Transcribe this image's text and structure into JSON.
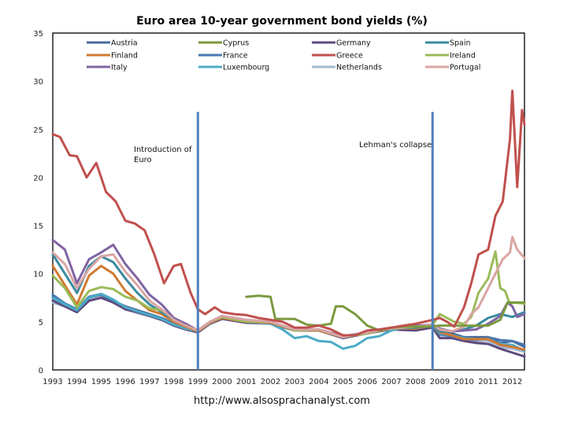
{
  "chart_data": {
    "type": "line",
    "title": "Euro area 10-year government bond yields (%)",
    "xlabel": "",
    "ylabel": "",
    "xlim": [
      1993,
      2012.5
    ],
    "ylim": [
      0,
      35
    ],
    "y_ticks": [
      "0",
      "5",
      "10",
      "15",
      "20",
      "25",
      "30",
      "35"
    ],
    "x_ticks": [
      "1993",
      "1994",
      "1995",
      "1996",
      "1997",
      "1998",
      "1999",
      "2000",
      "2001",
      "2002",
      "2003",
      "2004",
      "2005",
      "2006",
      "2007",
      "2008",
      "2009",
      "2010",
      "2011",
      "2012"
    ],
    "grid": false,
    "legend_placement": "top (inside plot, 3 rows x 4 columns)",
    "annotations": [
      {
        "text_lines": [
          "Introduction of",
          "Euro"
        ],
        "x": 1999.0,
        "marker": "vertical line"
      },
      {
        "text_lines": [
          "Lehman's collapse"
        ],
        "x": 2008.7,
        "marker": "vertical line"
      }
    ],
    "footer": "http://www.alsosprachanalyst.com",
    "series": [
      {
        "name": "Austria",
        "color": "#4a6a9a",
        "x": [
          1993,
          1993.5,
          1994,
          1994.5,
          1995,
          1995.5,
          1996,
          1996.5,
          1997,
          1997.5,
          1998,
          1998.5,
          1999,
          1999.5,
          2000,
          2001,
          2002,
          2003,
          2004,
          2005,
          2006,
          2007,
          2008,
          2008.7,
          2009,
          2009.5,
          2010,
          2010.5,
          2011,
          2011.5,
          2012,
          2012.5
        ],
        "values": [
          7.6,
          6.8,
          6.2,
          7.5,
          7.8,
          7.2,
          6.6,
          6.2,
          5.8,
          5.4,
          4.8,
          4.4,
          4.0,
          4.8,
          5.5,
          5.1,
          4.9,
          4.1,
          4.1,
          3.4,
          3.8,
          4.3,
          4.3,
          4.6,
          4.2,
          3.8,
          3.4,
          3.4,
          3.4,
          2.8,
          3.0,
          2.4
        ]
      },
      {
        "name": "Cyprus",
        "color": "#7a9a3e",
        "x": [
          2001.0,
          2001.5,
          2002.0,
          2002.2,
          2002.5,
          2003.0,
          2003.5,
          2004.0,
          2004.5,
          2004.7,
          2005.0,
          2005.5,
          2006.0,
          2006.5,
          2007.0,
          2007.5,
          2008.0,
          2008.5,
          2009.0,
          2009.5,
          2010.0,
          2010.5,
          2011.0,
          2011.5,
          2011.8,
          2012.0,
          2012.5
        ],
        "values": [
          7.6,
          7.7,
          7.6,
          5.3,
          5.3,
          5.3,
          4.7,
          4.6,
          4.8,
          6.6,
          6.6,
          5.8,
          4.6,
          4.1,
          4.4,
          4.5,
          4.5,
          4.5,
          4.6,
          4.6,
          4.6,
          4.6,
          4.6,
          5.2,
          7.0,
          7.0,
          7.0
        ]
      },
      {
        "name": "Germany",
        "color": "#5e4a7e",
        "x": [
          1993,
          1993.5,
          1994,
          1994.5,
          1995,
          1995.5,
          1996,
          1996.5,
          1997,
          1997.5,
          1998,
          1998.5,
          1999,
          1999.5,
          2000,
          2001,
          2002,
          2003,
          2004,
          2005,
          2006,
          2007,
          2008,
          2008.7,
          2009,
          2009.5,
          2010,
          2010.5,
          2011,
          2011.5,
          2012,
          2012.5
        ],
        "values": [
          7.2,
          6.6,
          6.0,
          7.2,
          7.5,
          7.0,
          6.3,
          6.0,
          5.6,
          5.2,
          4.6,
          4.2,
          3.9,
          4.8,
          5.3,
          4.9,
          4.8,
          4.1,
          4.1,
          3.3,
          3.8,
          4.2,
          4.1,
          4.4,
          3.3,
          3.3,
          3.0,
          2.8,
          2.7,
          2.2,
          1.8,
          1.4
        ]
      },
      {
        "name": "Spain",
        "color": "#3a8aa0",
        "x": [
          1993,
          1993.5,
          1994,
          1994.5,
          1995,
          1995.5,
          1996,
          1996.5,
          1997,
          1997.5,
          1998,
          1998.5,
          1999,
          1999.5,
          2000,
          2001,
          2002,
          2003,
          2004,
          2005,
          2006,
          2007,
          2008,
          2008.7,
          2009,
          2009.5,
          2010,
          2010.5,
          2011,
          2011.5,
          2012,
          2012.5
        ],
        "values": [
          12.0,
          10.0,
          8.0,
          10.8,
          11.8,
          11.2,
          9.5,
          8.0,
          6.8,
          6.0,
          5.2,
          4.6,
          4.1,
          5.0,
          5.5,
          5.1,
          5.0,
          4.1,
          4.2,
          3.4,
          3.8,
          4.3,
          4.4,
          4.6,
          4.0,
          4.0,
          4.2,
          4.6,
          5.4,
          5.8,
          5.5,
          6.0
        ]
      },
      {
        "name": "Finland",
        "color": "#d07a30",
        "x": [
          1993,
          1993.5,
          1994,
          1994.5,
          1995,
          1995.5,
          1996,
          1996.5,
          1997,
          1997.5,
          1998,
          1998.5,
          1999,
          1999.5,
          2000,
          2001,
          2002,
          2003,
          2004,
          2005,
          2006,
          2007,
          2008,
          2008.7,
          2009,
          2009.5,
          2010,
          2010.5,
          2011,
          2011.5,
          2012,
          2012.5
        ],
        "values": [
          10.8,
          8.8,
          6.8,
          9.8,
          10.8,
          10.0,
          8.2,
          7.2,
          6.2,
          5.8,
          5.0,
          4.5,
          4.0,
          4.9,
          5.4,
          5.0,
          4.9,
          4.1,
          4.1,
          3.4,
          3.8,
          4.3,
          4.3,
          4.6,
          3.9,
          3.6,
          3.2,
          3.2,
          3.2,
          2.6,
          2.4,
          2.1
        ]
      },
      {
        "name": "France",
        "color": "#4a78b0",
        "x": [
          1993,
          1993.5,
          1994,
          1994.5,
          1995,
          1995.5,
          1996,
          1996.5,
          1997,
          1997.5,
          1998,
          1998.5,
          1999,
          1999.5,
          2000,
          2001,
          2002,
          2003,
          2004,
          2005,
          2006,
          2007,
          2008,
          2008.7,
          2009,
          2009.5,
          2010,
          2010.5,
          2011,
          2011.5,
          2012,
          2012.5
        ],
        "values": [
          7.8,
          6.9,
          6.3,
          7.6,
          7.9,
          7.3,
          6.5,
          6.1,
          5.7,
          5.3,
          4.7,
          4.3,
          4.0,
          4.9,
          5.4,
          5.0,
          4.9,
          4.1,
          4.1,
          3.4,
          3.8,
          4.3,
          4.3,
          4.6,
          3.7,
          3.5,
          3.2,
          3.1,
          3.4,
          3.1,
          3.0,
          2.6
        ]
      },
      {
        "name": "Greece",
        "color": "#c0504d",
        "x": [
          1993,
          1993.3,
          1993.7,
          1994,
          1994.4,
          1994.8,
          1995.2,
          1995.6,
          1996,
          1996.4,
          1996.8,
          1997.2,
          1997.6,
          1998,
          1998.3,
          1998.7,
          1999,
          1999.3,
          1999.7,
          2000,
          2000.5,
          2001,
          2001.5,
          2002,
          2002.5,
          2003,
          2003.5,
          2004,
          2004.5,
          2005,
          2005.5,
          2006,
          2006.5,
          2007,
          2007.5,
          2008,
          2008.7,
          2009,
          2009.3,
          2009.6,
          2010,
          2010.3,
          2010.6,
          2011,
          2011.3,
          2011.6,
          2011.9,
          2012.0,
          2012.2,
          2012.4,
          2012.5
        ],
        "values": [
          24.5,
          24.2,
          22.3,
          22.2,
          20.0,
          21.5,
          18.5,
          17.5,
          15.5,
          15.2,
          14.5,
          12.0,
          9.0,
          10.8,
          11.0,
          8.0,
          6.3,
          5.8,
          6.5,
          6.0,
          5.8,
          5.7,
          5.4,
          5.2,
          5.0,
          4.4,
          4.4,
          4.6,
          4.2,
          3.6,
          3.6,
          4.1,
          4.2,
          4.4,
          4.6,
          4.8,
          5.2,
          5.4,
          5.0,
          4.5,
          6.5,
          9.0,
          12.0,
          12.5,
          16.0,
          17.5,
          24.0,
          29.0,
          19.0,
          27.0,
          25.5
        ]
      },
      {
        "name": "Ireland",
        "color": "#9bbb59",
        "x": [
          1993,
          1993.5,
          1994,
          1994.5,
          1995,
          1995.5,
          1996,
          1996.5,
          1997,
          1997.5,
          1998,
          1998.5,
          1999,
          1999.5,
          2000,
          2001,
          2002,
          2003,
          2004,
          2005,
          2006,
          2007,
          2008,
          2008.7,
          2009,
          2009.3,
          2009.6,
          2010,
          2010.3,
          2010.6,
          2011,
          2011.3,
          2011.5,
          2011.7,
          2011.9,
          2012,
          2012.5
        ],
        "values": [
          9.8,
          8.5,
          6.5,
          8.2,
          8.6,
          8.4,
          7.6,
          7.2,
          6.4,
          6.2,
          5.4,
          4.7,
          4.1,
          5.0,
          5.5,
          5.0,
          5.0,
          4.1,
          4.2,
          3.4,
          3.8,
          4.3,
          4.5,
          4.7,
          5.8,
          5.4,
          5.0,
          4.8,
          5.5,
          8.0,
          9.5,
          12.3,
          8.5,
          8.2,
          6.8,
          7.0,
          6.9
        ]
      },
      {
        "name": "Italy",
        "color": "#8064a2",
        "x": [
          1993,
          1993.5,
          1994,
          1994.5,
          1995,
          1995.5,
          1996,
          1996.5,
          1997,
          1997.5,
          1998,
          1998.5,
          1999,
          1999.5,
          2000,
          2001,
          2002,
          2003,
          2004,
          2005,
          2006,
          2007,
          2008,
          2008.7,
          2009,
          2009.5,
          2010,
          2010.5,
          2011,
          2011.5,
          2011.8,
          2012,
          2012.2,
          2012.5
        ],
        "values": [
          13.5,
          12.5,
          9.0,
          11.5,
          12.2,
          13.0,
          11.0,
          9.5,
          7.8,
          6.8,
          5.4,
          4.8,
          4.1,
          5.0,
          5.6,
          5.2,
          5.0,
          4.2,
          4.2,
          3.5,
          3.9,
          4.3,
          4.6,
          4.7,
          4.3,
          4.0,
          4.1,
          4.2,
          4.8,
          5.6,
          7.0,
          6.6,
          5.5,
          5.8
        ]
      },
      {
        "name": "Luxembourg",
        "color": "#4bacc6",
        "x": [
          1993,
          1993.5,
          1994,
          1994.5,
          1995,
          1995.5,
          1996,
          1996.5,
          1997,
          1997.5,
          1998,
          1998.5,
          1999,
          1999.5,
          2000,
          2001,
          2002,
          2002.5,
          2003,
          2003.5,
          2004,
          2004.5,
          2005,
          2005.5,
          2006,
          2006.5,
          2007,
          2007.5,
          2008,
          2008.7,
          2009,
          2009.5,
          2010,
          2010.5,
          2011,
          2011.5,
          2012,
          2012.5
        ],
        "values": [
          7.5,
          6.8,
          6.2,
          7.5,
          7.9,
          7.3,
          6.5,
          6.1,
          5.7,
          5.3,
          4.7,
          4.3,
          4.0,
          4.9,
          5.4,
          5.0,
          4.8,
          4.2,
          3.3,
          3.5,
          3.0,
          2.9,
          2.2,
          2.5,
          3.3,
          3.5,
          4.1,
          4.4,
          4.4,
          4.6,
          3.8,
          3.6,
          3.3,
          3.2,
          3.2,
          2.7,
          2.6,
          2.0
        ]
      },
      {
        "name": "Netherlands",
        "color": "#a5b8d0",
        "x": [
          1993,
          1993.5,
          1994,
          1994.5,
          1995,
          1995.5,
          1996,
          1996.5,
          1997,
          1997.5,
          1998,
          1998.5,
          1999,
          1999.5,
          2000,
          2001,
          2002,
          2003,
          2004,
          2005,
          2006,
          2007,
          2008,
          2008.7,
          2009,
          2009.5,
          2010,
          2010.5,
          2011,
          2011.5,
          2012,
          2012.5
        ],
        "values": [
          7.0,
          6.6,
          6.0,
          7.2,
          7.5,
          7.1,
          6.3,
          5.9,
          5.6,
          5.2,
          4.6,
          4.2,
          3.9,
          4.8,
          5.4,
          5.0,
          4.9,
          4.1,
          4.1,
          3.4,
          3.8,
          4.3,
          4.3,
          4.6,
          3.6,
          3.5,
          3.2,
          3.0,
          3.0,
          2.4,
          2.2,
          1.9
        ]
      },
      {
        "name": "Portugal",
        "color": "#d9a5a3",
        "x": [
          1993,
          1993.5,
          1994,
          1994.5,
          1995,
          1995.5,
          1996,
          1996.5,
          1997,
          1997.5,
          1998,
          1998.5,
          1999,
          1999.5,
          2000,
          2001,
          2002,
          2003,
          2004,
          2005,
          2006,
          2007,
          2008,
          2008.7,
          2009,
          2009.5,
          2010,
          2010.3,
          2010.6,
          2011,
          2011.3,
          2011.6,
          2011.9,
          2012.0,
          2012.2,
          2012.5
        ],
        "values": [
          12.2,
          11.0,
          8.5,
          10.5,
          11.8,
          12.0,
          10.2,
          8.8,
          7.2,
          6.3,
          5.2,
          4.6,
          4.1,
          5.0,
          5.6,
          5.2,
          5.0,
          4.2,
          4.2,
          3.4,
          3.9,
          4.3,
          4.5,
          4.7,
          4.2,
          4.0,
          4.5,
          5.8,
          6.5,
          8.5,
          10.0,
          11.5,
          12.2,
          13.8,
          12.5,
          11.6
        ]
      }
    ]
  }
}
